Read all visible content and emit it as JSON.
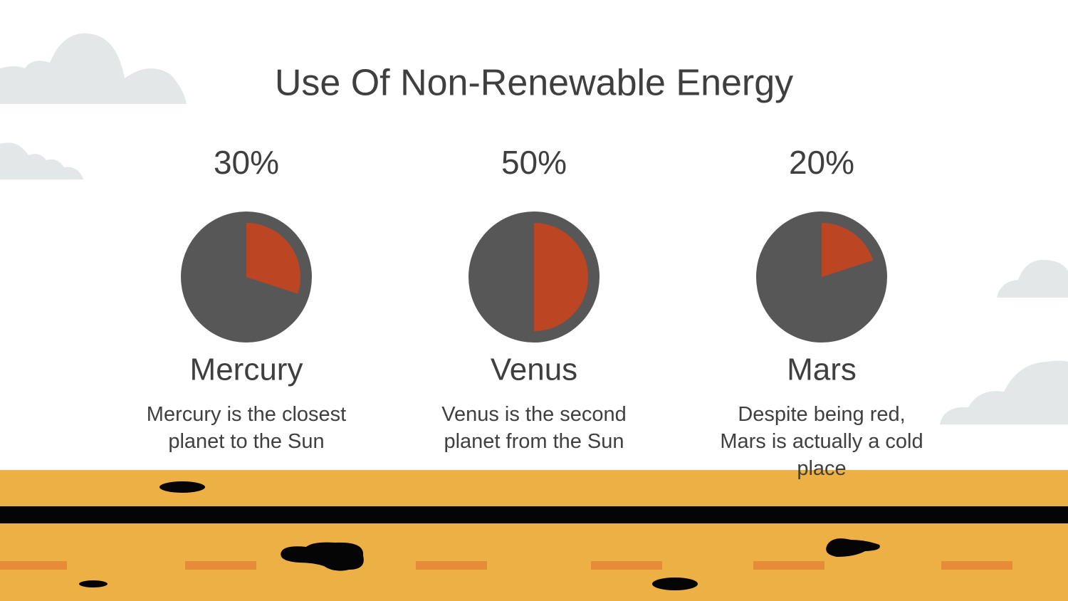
{
  "title": "Use Of Non-Renewable Energy",
  "chart_data": [
    {
      "type": "pie",
      "title": "Mercury",
      "values": [
        30
      ],
      "value_labels": [
        "30%"
      ],
      "subtitle": "Mercury is  the closest planet to the Sun",
      "color": "#bc4524",
      "background": "#575757"
    },
    {
      "type": "pie",
      "title": "Venus",
      "values": [
        50
      ],
      "value_labels": [
        "50%"
      ],
      "subtitle": "Venus is the second planet from the Sun",
      "color": "#bc4524",
      "background": "#575757"
    },
    {
      "type": "pie",
      "title": "Mars",
      "values": [
        20
      ],
      "value_labels": [
        "20%"
      ],
      "subtitle": "Despite being red, Mars is actually a cold place",
      "color": "#bc4524",
      "background": "#575757"
    }
  ]
}
